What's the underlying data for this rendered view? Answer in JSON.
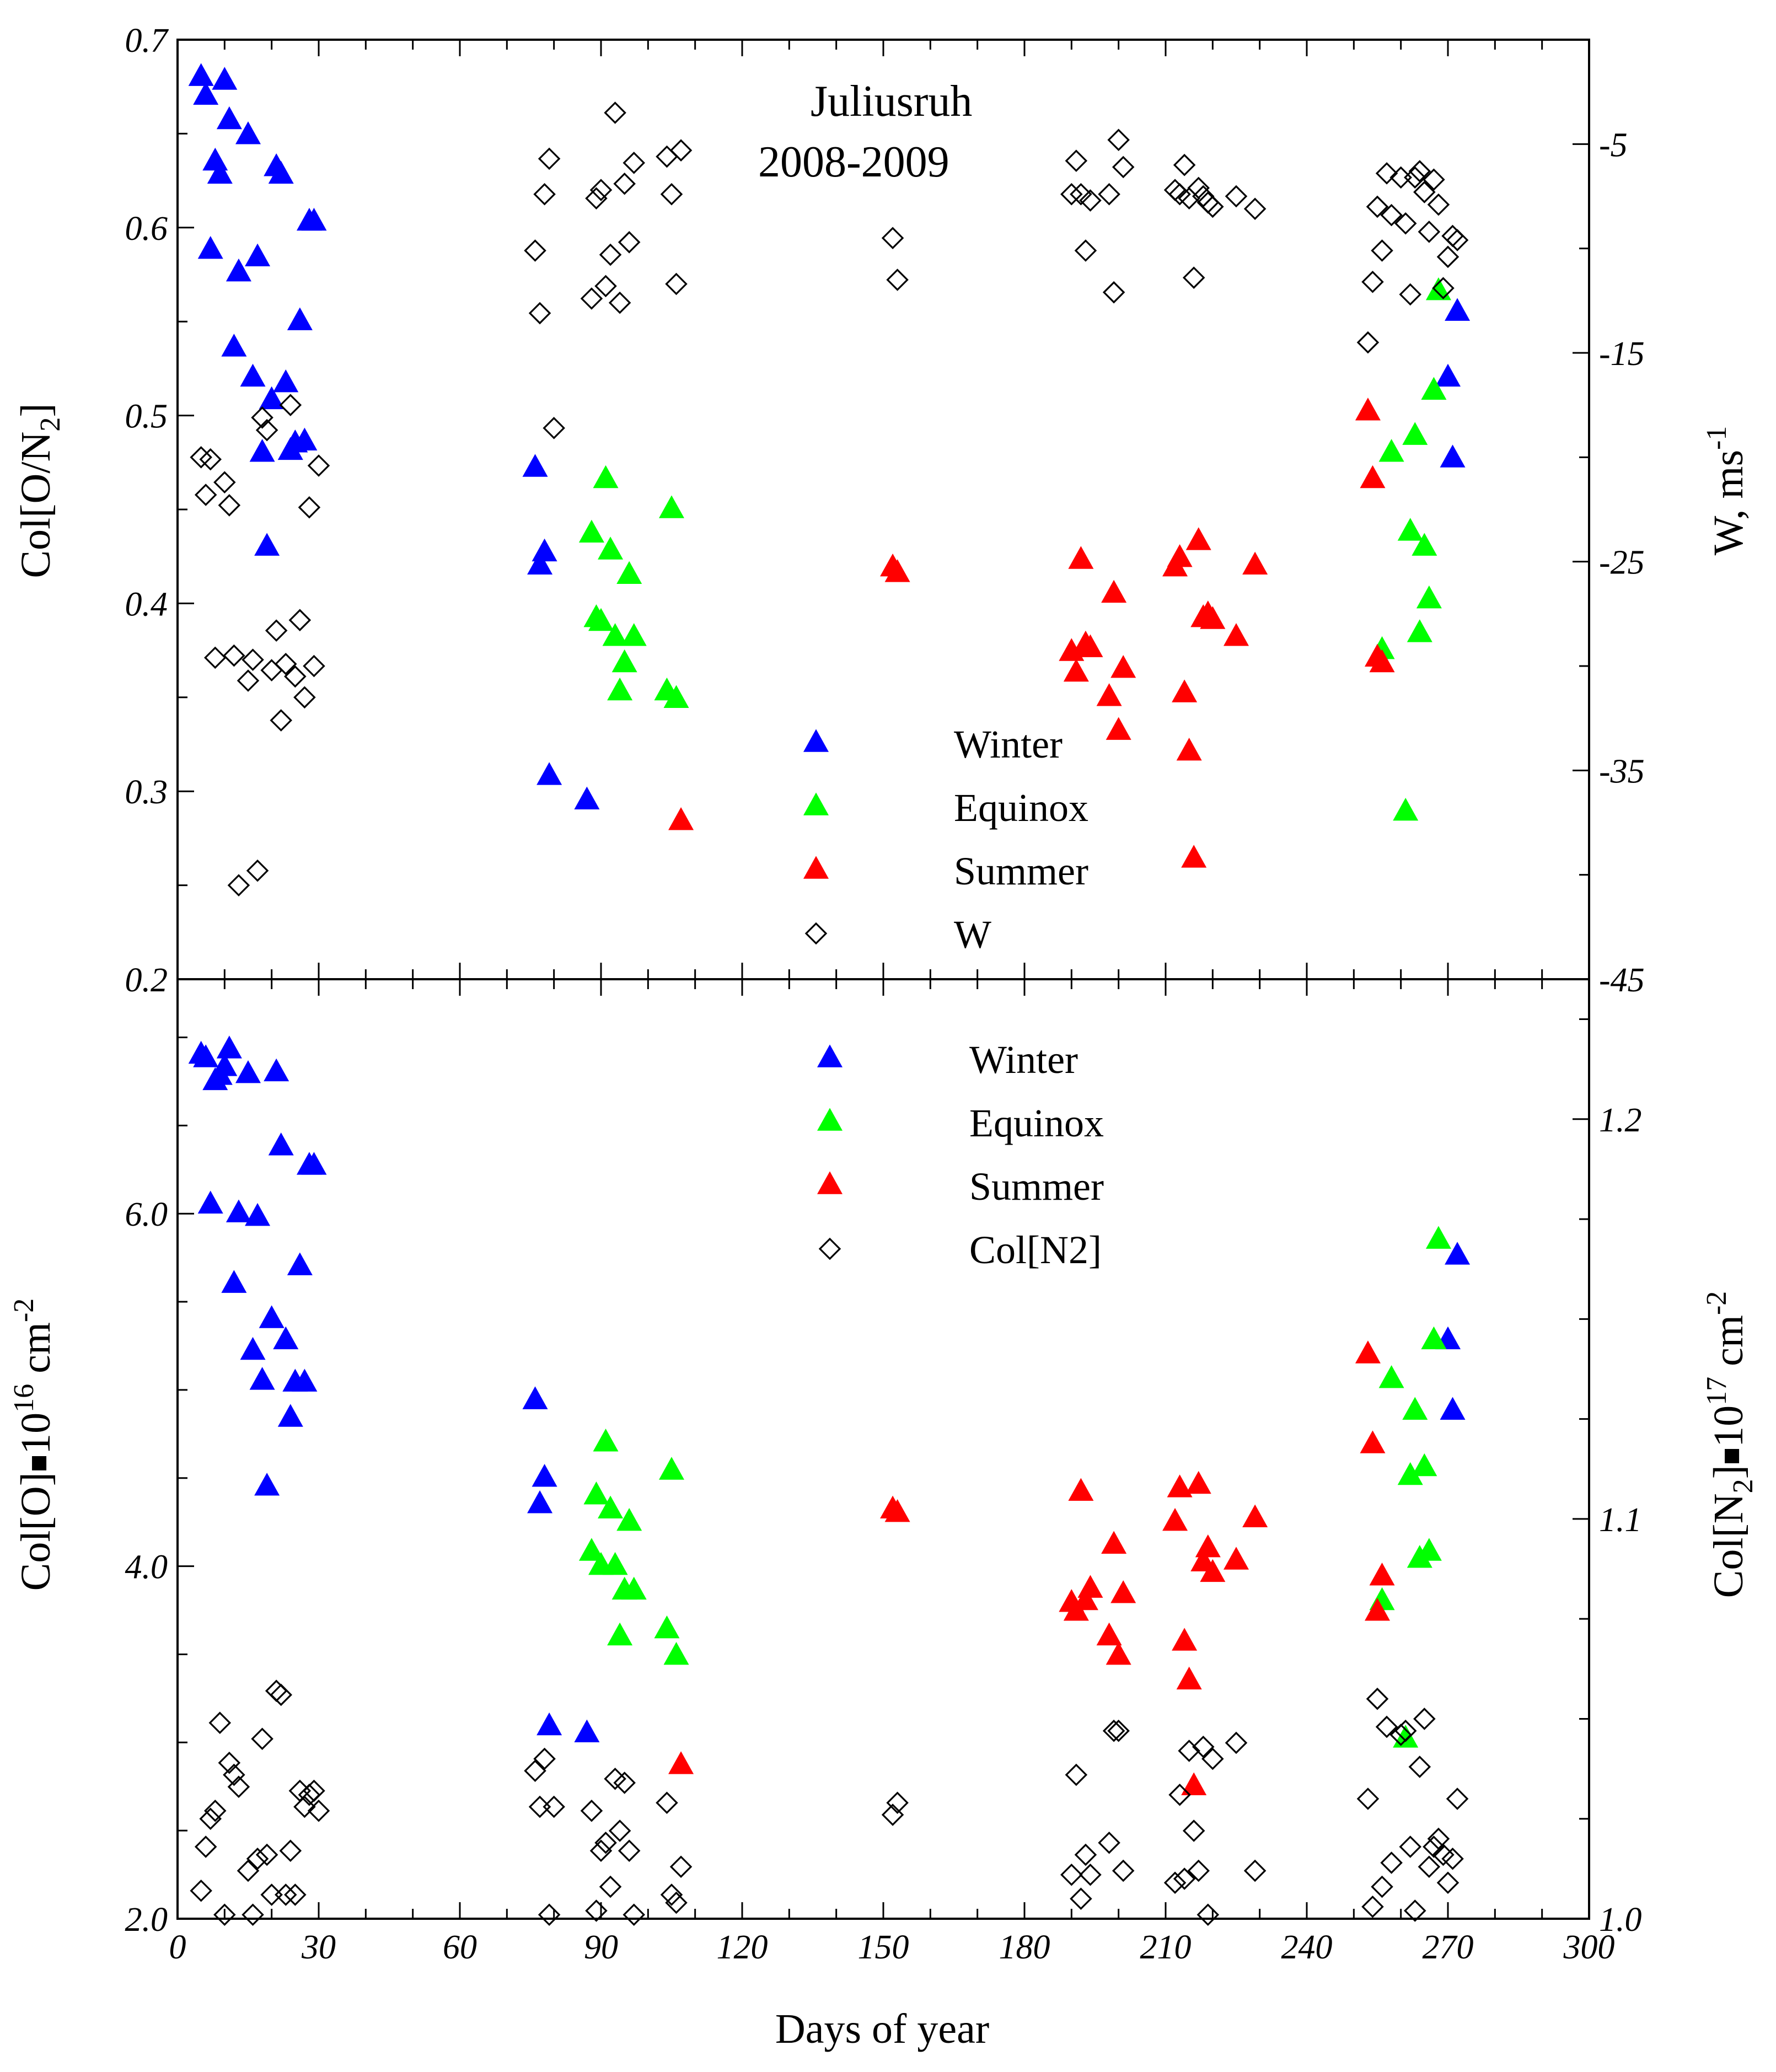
{
  "colors": {
    "Winter": "#0000ff",
    "Equinox": "#00ff00",
    "Summer": "#ff0000",
    "open": "#000000"
  },
  "chart_data": [
    {
      "type": "scatter",
      "title": "",
      "annotation": [
        "Juliusruh",
        "2008-2009"
      ],
      "xlabel": "",
      "ylabel_main": "Col[O/N",
      "ylabel_sub": "2",
      "ylabel_end": "]",
      "y2label_main": "W, ms",
      "y2label_sup": "-1",
      "xlim": [
        0,
        300
      ],
      "ylim": [
        0.2,
        0.7
      ],
      "y2lim": [
        -45,
        0
      ],
      "x_ticks": [
        "0",
        "30",
        "60",
        "90",
        "120",
        "150",
        "180",
        "210",
        "240",
        "270",
        "300"
      ],
      "y_ticks": [
        "0.2",
        "0.3",
        "0.4",
        "0.5",
        "0.6",
        "0.7"
      ],
      "y2_ticks": [
        "-45",
        "-35",
        "-25",
        "-15",
        "-5"
      ],
      "legend": {
        "position": "center",
        "entries": [
          "Winter",
          "Equinox",
          "Summer",
          "W"
        ]
      },
      "series": [
        {
          "name": "Winter",
          "marker": "triangle",
          "axis": "left",
          "x": [
            5,
            6,
            7,
            8,
            9,
            10,
            11,
            12,
            13,
            15,
            16,
            17,
            18,
            19,
            20,
            21,
            22,
            23,
            24,
            25,
            26,
            27,
            28,
            29,
            76,
            77,
            78,
            79,
            87,
            272,
            270,
            271
          ],
          "y": [
            0.68,
            0.67,
            0.588,
            0.635,
            0.628,
            0.678,
            0.657,
            0.536,
            0.576,
            0.649,
            0.52,
            0.584,
            0.48,
            0.43,
            0.508,
            0.632,
            0.628,
            0.517,
            0.481,
            0.485,
            0.55,
            0.486,
            0.603,
            0.603,
            0.472,
            0.42,
            0.427,
            0.308,
            0.295,
            0.555,
            0.52,
            0.477
          ]
        },
        {
          "name": "Equinox",
          "marker": "triangle",
          "axis": "left",
          "x": [
            88,
            89,
            90,
            91,
            92,
            93,
            94,
            95,
            96,
            97,
            104,
            105,
            106,
            256,
            258,
            261,
            262,
            263,
            264,
            265,
            266,
            267,
            268
          ],
          "y": [
            0.437,
            0.392,
            0.39,
            0.466,
            0.428,
            0.382,
            0.353,
            0.368,
            0.415,
            0.382,
            0.353,
            0.45,
            0.349,
            0.375,
            0.48,
            0.289,
            0.438,
            0.489,
            0.384,
            0.43,
            0.402,
            0.513,
            0.566
          ]
        },
        {
          "name": "Summer",
          "marker": "triangle",
          "axis": "left",
          "x": [
            107,
            152,
            153,
            190,
            191,
            192,
            193,
            194,
            198,
            199,
            200,
            201,
            212,
            213,
            214,
            215,
            216,
            217,
            218,
            219,
            220,
            225,
            229,
            253,
            254,
            255,
            256
          ],
          "y": [
            0.284,
            0.419,
            0.416,
            0.374,
            0.363,
            0.423,
            0.378,
            0.376,
            0.35,
            0.405,
            0.332,
            0.365,
            0.419,
            0.424,
            0.352,
            0.321,
            0.264,
            0.433,
            0.392,
            0.394,
            0.391,
            0.382,
            0.42,
            0.502,
            0.466,
            0.371,
            0.368
          ]
        },
        {
          "name": "W",
          "marker": "diamond",
          "axis": "right",
          "x": [
            5,
            6,
            7,
            8,
            10,
            11,
            12,
            13,
            15,
            16,
            17,
            18,
            19,
            20,
            21,
            22,
            23,
            24,
            25,
            26,
            27,
            28,
            29,
            30,
            76,
            77,
            78,
            79,
            80,
            88,
            89,
            90,
            91,
            92,
            93,
            94,
            95,
            96,
            97,
            104,
            105,
            106,
            107,
            152,
            153,
            190,
            191,
            192,
            193,
            194,
            198,
            199,
            200,
            201,
            212,
            213,
            214,
            215,
            216,
            217,
            218,
            219,
            220,
            225,
            229,
            253,
            254,
            255,
            256,
            257,
            258,
            260,
            261,
            262,
            263,
            264,
            265,
            266,
            267,
            268,
            269,
            270,
            271,
            272
          ],
          "y": [
            -20,
            -21.8,
            -20.1,
            -29.6,
            -21.2,
            -22.3,
            -29.5,
            -40.5,
            -30.7,
            -29.7,
            -39.8,
            -18.1,
            -18.7,
            -30.2,
            -28.3,
            -32.6,
            -29.9,
            -17.5,
            -30.5,
            -27.8,
            -31.5,
            -22.4,
            -30,
            -20.4,
            -10.1,
            -13.1,
            -7.4,
            -5.7,
            -18.6,
            -12.4,
            -7.6,
            -7.2,
            -11.8,
            -10.3,
            -3.5,
            -12.6,
            -6.9,
            -9.7,
            -5.9,
            -5.6,
            -7.4,
            -11.7,
            -5.3,
            -9.5,
            -11.5,
            -7.4,
            -5.8,
            -7.4,
            -10.1,
            -7.7,
            -7.4,
            -12.1,
            -4.8,
            -6.1,
            -7.2,
            -7.4,
            -6,
            -7.6,
            -11.4,
            -7.1,
            -7.5,
            -7.8,
            -8,
            -7.5,
            -8.1,
            -14.5,
            -11.6,
            -8,
            -10.1,
            -6.4,
            -8.4,
            -6.6,
            -8.8,
            -12.2,
            -6.6,
            -6.3,
            -7.3,
            -9.2,
            -6.7,
            -7.9,
            -11.9,
            -10.4,
            -9.4,
            -9.6
          ]
        }
      ]
    },
    {
      "type": "scatter",
      "title": "",
      "xlabel": "Days of year",
      "ylabel_main": "Col[O]",
      "ylabel_mid": "10",
      "ylabel_sup": "16",
      "ylabel_end": " cm",
      "ylabel_sup2": "-2",
      "y2label_main": "Col[N",
      "y2label_sub": "2",
      "y2label_mid": "]",
      "y2label_num": "10",
      "y2label_sup": "17",
      "y2label_end": " cm",
      "y2label_sup2": "-2",
      "xlim": [
        0,
        300
      ],
      "ylim": [
        2.0,
        7.33
      ],
      "y2lim": [
        1.0,
        1.235
      ],
      "x_ticks": [
        "0",
        "30",
        "60",
        "90",
        "120",
        "150",
        "180",
        "210",
        "240",
        "270",
        "300"
      ],
      "y_ticks": [
        "2.0",
        "4.0",
        "6.0"
      ],
      "y2_ticks": [
        "1.0",
        "1.1",
        "1.2"
      ],
      "legend": {
        "position": "top-center",
        "entries": [
          "Winter",
          "Equinox",
          "Summer",
          "Col[N2]"
        ]
      },
      "series": [
        {
          "name": "Winter",
          "marker": "triangle",
          "axis": "left",
          "x": [
            5,
            6,
            7,
            8,
            9,
            10,
            11,
            12,
            13,
            15,
            16,
            17,
            18,
            19,
            20,
            21,
            22,
            23,
            24,
            25,
            26,
            27,
            28,
            29,
            76,
            77,
            78,
            79,
            87,
            272,
            270,
            271
          ],
          "y": [
            6.9,
            6.88,
            6.05,
            6.75,
            6.78,
            6.83,
            6.93,
            5.6,
            6.0,
            6.79,
            5.22,
            5.98,
            5.05,
            4.45,
            5.4,
            6.8,
            6.38,
            5.28,
            4.84,
            5.04,
            5.7,
            5.04,
            6.27,
            6.27,
            4.94,
            4.35,
            4.5,
            3.09,
            3.05,
            5.76,
            5.28,
            4.88
          ]
        },
        {
          "name": "Equinox",
          "marker": "triangle",
          "axis": "left",
          "x": [
            88,
            89,
            90,
            91,
            92,
            93,
            94,
            95,
            96,
            97,
            104,
            105,
            106,
            256,
            258,
            261,
            262,
            263,
            264,
            265,
            266,
            267,
            268
          ],
          "y": [
            4.08,
            4.4,
            4.0,
            4.7,
            4.32,
            4.0,
            3.6,
            3.86,
            4.25,
            3.86,
            3.64,
            4.54,
            3.49,
            3.8,
            5.06,
            3.02,
            4.51,
            4.88,
            4.04,
            4.56,
            4.08,
            5.28,
            5.85
          ]
        },
        {
          "name": "Summer",
          "marker": "triangle",
          "axis": "left",
          "x": [
            107,
            152,
            153,
            190,
            191,
            192,
            193,
            194,
            198,
            199,
            200,
            201,
            212,
            213,
            214,
            215,
            216,
            217,
            218,
            219,
            220,
            225,
            229,
            253,
            254,
            255,
            256
          ],
          "y": [
            2.87,
            4.32,
            4.3,
            3.79,
            3.74,
            4.42,
            3.8,
            3.87,
            3.6,
            4.12,
            3.49,
            3.84,
            4.25,
            4.44,
            3.57,
            3.35,
            2.75,
            4.46,
            4.02,
            4.1,
            3.96,
            4.03,
            4.27,
            5.2,
            4.69,
            3.74,
            3.94
          ]
        },
        {
          "name": "Col[N2]",
          "marker": "diamond",
          "axis": "right",
          "x": [
            5,
            6,
            7,
            8,
            9,
            10,
            11,
            12,
            13,
            15,
            16,
            17,
            18,
            19,
            20,
            21,
            22,
            23,
            24,
            25,
            26,
            27,
            28,
            29,
            30,
            76,
            77,
            78,
            79,
            80,
            88,
            89,
            90,
            91,
            92,
            93,
            94,
            95,
            96,
            97,
            104,
            105,
            106,
            107,
            152,
            153,
            190,
            191,
            192,
            193,
            194,
            198,
            199,
            200,
            201,
            212,
            213,
            214,
            215,
            216,
            217,
            218,
            219,
            220,
            225,
            229,
            253,
            254,
            255,
            256,
            257,
            258,
            260,
            261,
            262,
            263,
            264,
            265,
            266,
            267,
            268,
            269,
            270,
            271,
            272
          ],
          "y": [
            1.007,
            1.018,
            1.025,
            1.027,
            1.049,
            1.001,
            1.039,
            1.036,
            1.033,
            1.012,
            1.001,
            1.015,
            1.045,
            1.016,
            1.006,
            1.057,
            1.056,
            1.006,
            1.017,
            1.006,
            1.032,
            1.028,
            1.031,
            1.032,
            1.027,
            1.037,
            1.028,
            1.04,
            1.001,
            1.028,
            1.027,
            1.002,
            1.017,
            1.019,
            1.008,
            1.035,
            1.022,
            1.034,
            1.017,
            1.001,
            1.029,
            1.006,
            1.004,
            1.013,
            1.026,
            1.029,
            1.011,
            1.036,
            1.005,
            1.016,
            1.011,
            1.019,
            1.047,
            1.047,
            1.012,
            1.009,
            1.031,
            1.01,
            1.042,
            1.022,
            1.012,
            1.043,
            1.001,
            1.04,
            1.044,
            1.012,
            1.03,
            1.003,
            1.055,
            1.008,
            1.048,
            1.014,
            1.046,
            1.047,
            1.018,
            1.002,
            1.038,
            1.05,
            1.013,
            1.018,
            1.02,
            1.016,
            1.009,
            1.015,
            1.03
          ]
        }
      ]
    }
  ]
}
